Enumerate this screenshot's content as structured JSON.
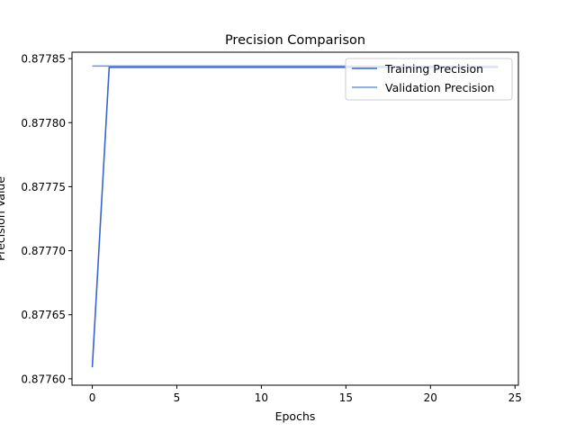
{
  "chart_data": {
    "type": "line",
    "title": "Precision Comparison",
    "xlabel": "Epochs",
    "ylabel": "Precision Value",
    "xlim": [
      -1.2,
      25.2
    ],
    "ylim": [
      0.877595,
      0.877855
    ],
    "x_ticks": [
      0,
      5,
      10,
      15,
      20,
      25
    ],
    "x_tick_labels": [
      "0",
      "5",
      "10",
      "15",
      "20",
      "25"
    ],
    "y_ticks": [
      0.8776,
      0.87765,
      0.8777,
      0.87775,
      0.8778,
      0.87785
    ],
    "y_tick_labels": [
      "0.87760",
      "0.87765",
      "0.87770",
      "0.87775",
      "0.87780",
      "0.87785"
    ],
    "grid": false,
    "legend_position": "top-right",
    "x": [
      0,
      1,
      2,
      3,
      4,
      5,
      6,
      7,
      8,
      9,
      10,
      11,
      12,
      13,
      14,
      15,
      16,
      17,
      18,
      19,
      20,
      21,
      22,
      23,
      24
    ],
    "series": [
      {
        "name": "Training Precision",
        "color": "#3a63d1",
        "values": [
          0.877609,
          0.8778432,
          0.8778432,
          0.8778432,
          0.8778432,
          0.8778432,
          0.8778432,
          0.8778432,
          0.8778432,
          0.8778432,
          0.8778432,
          0.8778432,
          0.8778432,
          0.8778432,
          0.8778432,
          0.8778432,
          0.8778432,
          0.8778432,
          0.8778432,
          0.8778432,
          0.8778432,
          0.8778432,
          0.8778432,
          0.8778432,
          0.8778432
        ]
      },
      {
        "name": "Validation Precision",
        "color": "#6495ed",
        "values": [
          0.8778442,
          0.8778442,
          0.8778442,
          0.8778442,
          0.8778442,
          0.8778442,
          0.8778442,
          0.8778442,
          0.8778442,
          0.8778442,
          0.8778442,
          0.8778442,
          0.8778442,
          0.8778442,
          0.8778442,
          0.8778442,
          0.8778442,
          0.8778442,
          0.8778442,
          0.8778442,
          0.8778442,
          0.8778442,
          0.8778442,
          0.8778442,
          0.8778442
        ]
      }
    ]
  }
}
